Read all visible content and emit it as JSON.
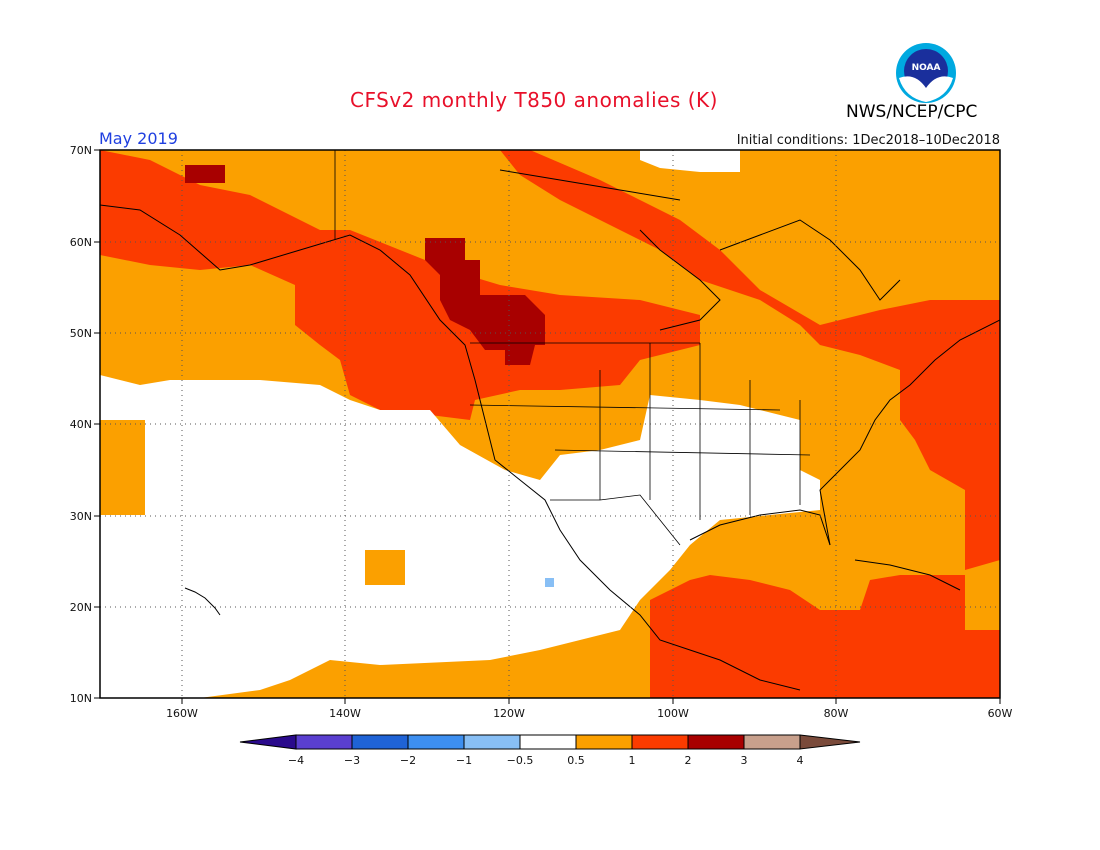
{
  "title": "CFSv2 monthly T850 anomalies (K)",
  "agency": "NWS/NCEP/CPC",
  "logo_text": "NOAA",
  "valid_month": "May 2019",
  "initial_conditions": "Initial conditions: 1Dec2018–10Dec2018",
  "map": {
    "lon_range": [
      -170,
      -60
    ],
    "lat_range": [
      10,
      70
    ],
    "lon_ticks": [
      "160W",
      "140W",
      "120W",
      "100W",
      "80W",
      "60W"
    ],
    "lat_ticks": [
      "70N",
      "60N",
      "50N",
      "40N",
      "30N",
      "20N",
      "10N"
    ]
  },
  "legend": {
    "tick_labels": [
      "−4",
      "−3",
      "−2",
      "−1",
      "−0.5",
      "0.5",
      "1",
      "2",
      "3",
      "4"
    ],
    "colors": [
      "#2a0a8c",
      "#5a3fd0",
      "#1f63d6",
      "#3d8ff0",
      "#88bff5",
      "#ffffff",
      "#fba000",
      "#fb3b00",
      "#a80000",
      "#c8a08c",
      "#7a4a3a"
    ]
  },
  "anomaly_colors": {
    "near_zero": "#ffffff",
    "0.5_to_1": "#fba000",
    "1_to_2": "#fb3b00",
    "2_to_3": "#a80000",
    "-1_to_-0.5": "#88bff5"
  }
}
